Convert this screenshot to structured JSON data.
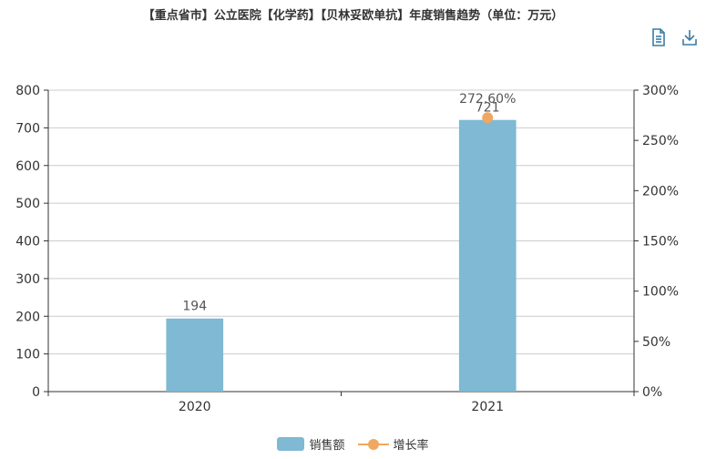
{
  "title": "【重点省市】公立医院【化学药】【贝林妥欧单抗】年度销售趋势（单位：万元）",
  "toolbar": {
    "data_view_icon": "document-icon",
    "save_image_icon": "download-icon"
  },
  "colors": {
    "bar": "#7fb9d4",
    "line": "#f0a860",
    "axis": "#333333",
    "grid": "#cccccc"
  },
  "chart_data": {
    "type": "bar",
    "categories": [
      "2020",
      "2021"
    ],
    "series": [
      {
        "name": "销售额",
        "type": "bar",
        "axis": "left",
        "values": [
          194,
          721
        ],
        "labels": [
          "194",
          "721"
        ]
      },
      {
        "name": "增长率",
        "type": "line",
        "axis": "right",
        "values": [
          null,
          272.6
        ],
        "labels": [
          "",
          "272.60%"
        ]
      }
    ],
    "y_left": {
      "min": 0,
      "max": 800,
      "ticks": [
        "0",
        "100",
        "200",
        "300",
        "400",
        "500",
        "600",
        "700",
        "800"
      ]
    },
    "y_right": {
      "min": 0,
      "max": 300,
      "ticks": [
        "0%",
        "50%",
        "100%",
        "150%",
        "200%",
        "250%",
        "300%"
      ]
    },
    "grid": true,
    "legend_position": "bottom"
  },
  "legend": [
    {
      "label": "销售额"
    },
    {
      "label": "增长率"
    }
  ]
}
